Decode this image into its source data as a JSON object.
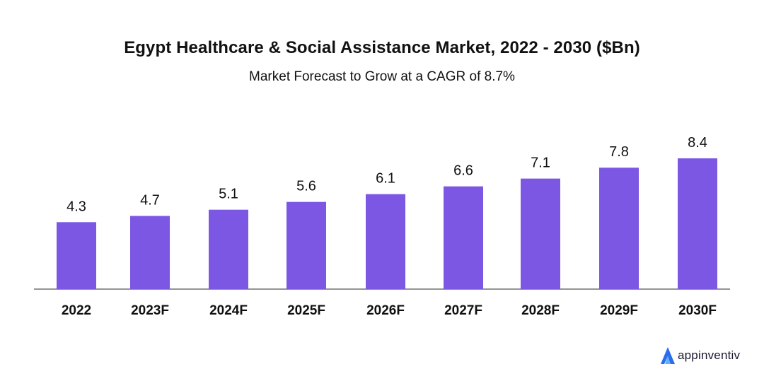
{
  "chart_data": {
    "type": "bar",
    "title": "Egypt Healthcare & Social Assistance Market, 2022 - 2030 ($Bn)",
    "subtitle": "Market Forecast to Grow at a CAGR of 8.7%",
    "categories": [
      "2022",
      "2023F",
      "2024F",
      "2025F",
      "2026F",
      "2027F",
      "2028F",
      "2029F",
      "2030F"
    ],
    "values": [
      4.3,
      4.7,
      5.1,
      5.6,
      6.1,
      6.6,
      7.1,
      7.8,
      8.4
    ],
    "value_labels": [
      "4.3",
      "4.7",
      "5.1",
      "5.6",
      "6.1",
      "6.6",
      "7.1",
      "7.8",
      "8.4"
    ],
    "xlabel": "",
    "ylabel": "",
    "grid": false,
    "bar_color": "#7b57e4",
    "axis_color": "#555555"
  },
  "brand": {
    "name": "appinventiv",
    "accent": "#2b6cf0"
  }
}
